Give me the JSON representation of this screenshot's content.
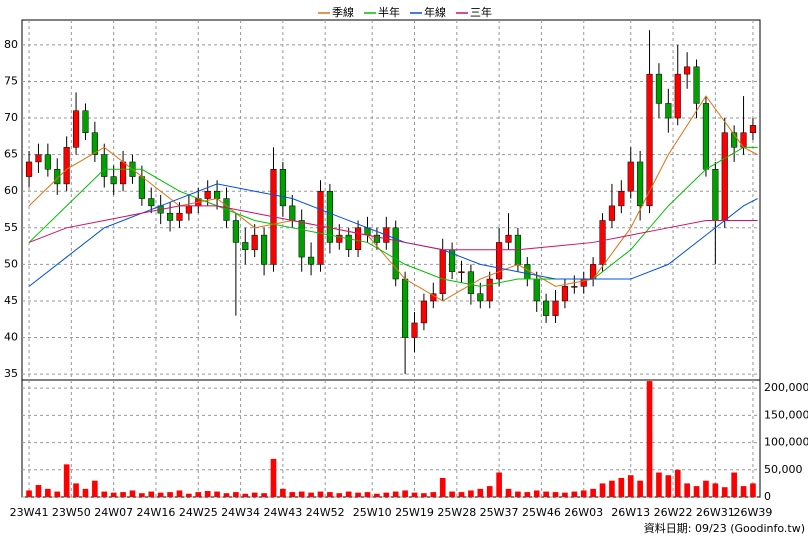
{
  "chart_data": {
    "type": "candlestick",
    "legend": [
      "季線",
      "半年",
      "年線",
      "三年"
    ],
    "footnote": "資料日期: 09/23  (Goodinfo.tw)",
    "xlim": [
      -1.5,
      155.5
    ],
    "xticks": [
      {
        "value": 0,
        "label": "23W41"
      },
      {
        "value": 9,
        "label": "23W50"
      },
      {
        "value": 18,
        "label": "24W07"
      },
      {
        "value": 27,
        "label": "24W16"
      },
      {
        "value": 36,
        "label": "24W25"
      },
      {
        "value": 45,
        "label": "24W34"
      },
      {
        "value": 54,
        "label": "24W43"
      },
      {
        "value": 63,
        "label": "24W52"
      },
      {
        "value": 73,
        "label": "25W10"
      },
      {
        "value": 82,
        "label": "25W19"
      },
      {
        "value": 91,
        "label": "25W28"
      },
      {
        "value": 100,
        "label": "25W37"
      },
      {
        "value": 109,
        "label": "25W46"
      },
      {
        "value": 118,
        "label": "26W03"
      },
      {
        "value": 128,
        "label": "26W13"
      },
      {
        "value": 137,
        "label": "26W22"
      },
      {
        "value": 146,
        "label": "26W31"
      },
      {
        "value": 154,
        "label": "26W39"
      }
    ],
    "ylim": [
      34.2,
      83.4
    ],
    "yticks": [
      35,
      40,
      45,
      50,
      55,
      60,
      65,
      70,
      75,
      80
    ],
    "y2lim": [
      0,
      215000
    ],
    "y2ticks": [
      0,
      {
        "value": 50000,
        "label": "50,000"
      },
      {
        "value": 100000,
        "label": "100,000"
      },
      {
        "value": 150000,
        "label": "150,000"
      },
      {
        "value": 200000,
        "label": "200,000"
      }
    ],
    "grid": true,
    "up_color": "#ff0000",
    "down_color": "#00a000",
    "volume_color": "#ff0000",
    "x": [
      0,
      2,
      4,
      6,
      8,
      10,
      12,
      14,
      16,
      18,
      20,
      22,
      24,
      26,
      28,
      30,
      32,
      34,
      36,
      38,
      40,
      42,
      44,
      46,
      48,
      50,
      52,
      54,
      56,
      58,
      60,
      62,
      64,
      66,
      68,
      70,
      72,
      74,
      76,
      78,
      80,
      82,
      84,
      86,
      88,
      90,
      92,
      94,
      96,
      98,
      100,
      102,
      104,
      106,
      108,
      110,
      112,
      114,
      116,
      118,
      120,
      122,
      124,
      126,
      128,
      130,
      132,
      134,
      136,
      138,
      140,
      142,
      144,
      146,
      148,
      150,
      152,
      154
    ],
    "open": [
      62,
      64,
      65,
      63,
      61,
      66,
      71,
      68,
      65,
      62,
      61,
      64,
      62,
      59,
      58,
      57,
      56,
      57,
      58,
      59,
      60,
      59,
      56,
      53,
      52,
      54,
      50,
      63,
      58,
      56,
      51,
      50,
      60,
      53,
      54,
      52,
      55,
      54,
      53,
      55,
      48,
      40,
      42,
      45,
      46,
      52,
      49,
      49,
      46,
      45,
      48,
      53,
      54,
      50,
      48,
      45,
      43,
      45,
      47,
      47,
      48,
      50,
      56,
      58,
      60,
      64,
      58,
      76,
      72,
      70,
      76,
      77,
      72,
      63,
      56,
      68,
      66,
      68
    ],
    "high": [
      65.5,
      66.5,
      66.5,
      64.5,
      67.5,
      73.5,
      72,
      69.5,
      66.5,
      63.5,
      65.5,
      65,
      63.5,
      60.5,
      59.5,
      58.5,
      58.5,
      59.5,
      60.5,
      61.5,
      61.5,
      60.5,
      57,
      55,
      55.5,
      55,
      66,
      64,
      59.5,
      57.5,
      53,
      61.5,
      61,
      55.5,
      55,
      56,
      56.5,
      55,
      56.5,
      56,
      49,
      43.5,
      46,
      47.5,
      53.5,
      53,
      50.5,
      50,
      47.5,
      49,
      55,
      57,
      55,
      51,
      49,
      46,
      46.5,
      48,
      48.5,
      49,
      51,
      57,
      61,
      61.5,
      66,
      65.5,
      82,
      77.5,
      74,
      80,
      79,
      78,
      73,
      64,
      70,
      69,
      73,
      70
    ],
    "low": [
      60.5,
      62.5,
      62,
      59.5,
      60,
      65,
      67,
      64,
      60.5,
      59.5,
      60,
      61,
      58,
      57,
      55.5,
      54.5,
      55,
      56,
      57,
      58,
      57.5,
      55,
      43,
      50,
      51,
      48.5,
      49,
      56.5,
      55,
      49,
      48.5,
      49,
      51.5,
      52,
      51,
      51,
      53,
      52,
      52,
      47,
      35,
      38,
      41,
      44,
      45,
      48,
      47.5,
      44.5,
      44,
      44,
      47,
      52,
      49,
      47,
      43.5,
      42,
      42,
      44,
      46,
      46,
      47,
      49,
      55,
      57,
      59,
      56,
      57,
      70,
      68,
      69,
      74,
      70,
      62,
      50,
      55,
      64,
      65,
      67
    ],
    "close": [
      64,
      65,
      63,
      61,
      66,
      71,
      68,
      65,
      62,
      61,
      64,
      62,
      59,
      58,
      57,
      56,
      57,
      58,
      59,
      60,
      59,
      56,
      53,
      52,
      54,
      50,
      63,
      58,
      56,
      51,
      50,
      60,
      53,
      54,
      52,
      55,
      54,
      53,
      55,
      48,
      40,
      42,
      45,
      46,
      52,
      49,
      49,
      46,
      45,
      48,
      53,
      54,
      50,
      48,
      45,
      43,
      45,
      47,
      47,
      48,
      50,
      56,
      58,
      60,
      64,
      58,
      76,
      72,
      70,
      76,
      77,
      72,
      63,
      56,
      68,
      66,
      68,
      69
    ],
    "volume": [
      12000,
      22000,
      15000,
      10000,
      60000,
      25000,
      15000,
      30000,
      10000,
      8000,
      9000,
      12000,
      7000,
      10000,
      8000,
      9000,
      12000,
      6000,
      9000,
      11000,
      10000,
      7000,
      9000,
      6000,
      8000,
      7000,
      70000,
      15000,
      9000,
      10000,
      8000,
      10000,
      9000,
      7000,
      10000,
      8000,
      9000,
      6000,
      8000,
      10000,
      12000,
      8000,
      7000,
      9000,
      35000,
      10000,
      9000,
      12000,
      15000,
      20000,
      45000,
      15000,
      10000,
      9000,
      12000,
      10000,
      9000,
      8000,
      10000,
      12000,
      15000,
      25000,
      30000,
      35000,
      40000,
      30000,
      213000,
      45000,
      40000,
      50000,
      25000,
      20000,
      30000,
      25000,
      18000,
      45000,
      20000,
      25000
    ],
    "series": [
      {
        "name": "季線",
        "color": "#e07010",
        "x": [
          0,
          8,
          16,
          24,
          32,
          40,
          48,
          56,
          64,
          72,
          80,
          88,
          96,
          104,
          112,
          120,
          128,
          136,
          144,
          152,
          155
        ],
        "values": [
          58,
          63,
          66,
          62,
          58,
          59,
          55,
          56,
          55,
          54,
          48,
          45,
          48,
          50,
          47,
          48,
          55,
          65,
          73,
          66,
          65
        ]
      },
      {
        "name": "半年",
        "color": "#00c000",
        "x": [
          0,
          8,
          16,
          24,
          32,
          40,
          48,
          56,
          64,
          72,
          80,
          88,
          96,
          104,
          112,
          120,
          128,
          136,
          144,
          152,
          155
        ],
        "values": [
          53,
          58,
          63,
          63,
          60,
          58,
          56,
          55,
          54,
          53,
          50,
          48,
          47,
          48,
          48,
          48,
          52,
          58,
          63,
          66,
          66
        ]
      },
      {
        "name": "年線",
        "color": "#0050e0",
        "x": [
          0,
          8,
          16,
          24,
          32,
          40,
          48,
          56,
          64,
          72,
          80,
          88,
          96,
          104,
          112,
          120,
          128,
          136,
          144,
          152,
          155
        ],
        "values": [
          47,
          51,
          55,
          57,
          59,
          61,
          60,
          59,
          57,
          55,
          53,
          52,
          50,
          49,
          48,
          48,
          48,
          50,
          54,
          58,
          59
        ]
      },
      {
        "name": "三年",
        "color": "#d0106a",
        "x": [
          0,
          8,
          16,
          24,
          32,
          40,
          48,
          56,
          64,
          72,
          80,
          88,
          96,
          104,
          112,
          120,
          128,
          136,
          144,
          152,
          155
        ],
        "values": [
          53,
          55,
          56,
          57,
          58,
          58,
          57,
          56,
          55,
          54,
          53,
          52,
          52,
          52,
          52.5,
          53,
          54,
          55,
          56,
          56,
          56
        ]
      }
    ]
  }
}
